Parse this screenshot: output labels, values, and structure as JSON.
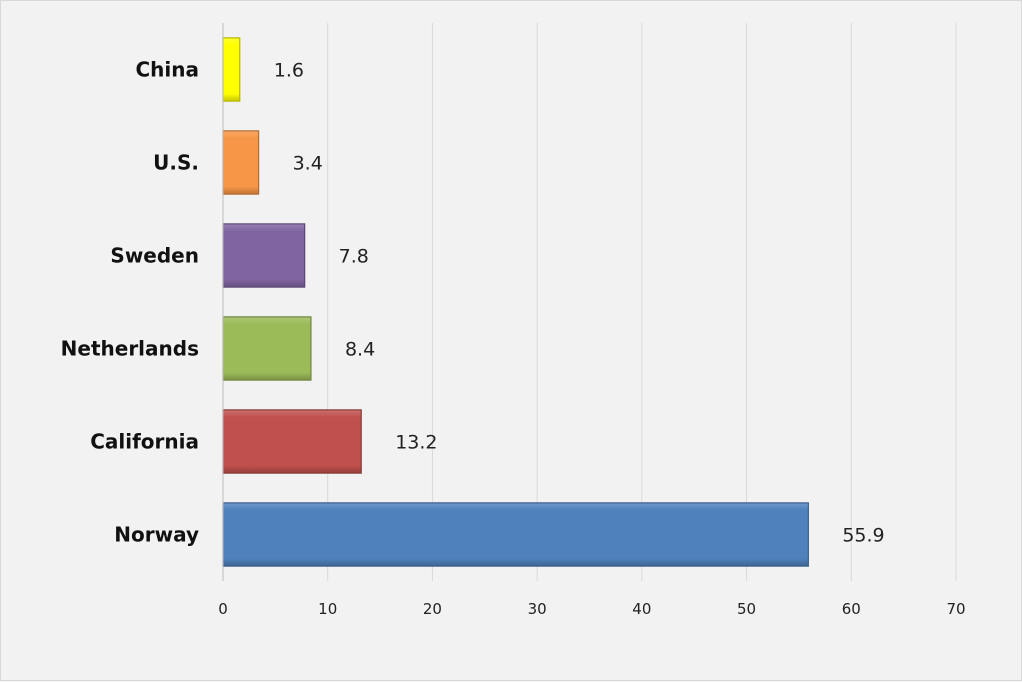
{
  "chart_data": {
    "type": "bar",
    "orientation": "horizontal",
    "title": "",
    "xlabel": "",
    "ylabel": "",
    "categories": [
      "China",
      "U.S.",
      "Sweden",
      "Netherlands",
      "California",
      "Norway"
    ],
    "values": [
      1.6,
      3.4,
      7.8,
      8.4,
      13.2,
      55.9
    ],
    "value_labels": [
      "1.6",
      "3.4",
      "7.8",
      "8.4",
      "13.2",
      "55.9"
    ],
    "colors": [
      "#ffff00",
      "#f79646",
      "#8064a2",
      "#9bbb59",
      "#c0504d",
      "#4f81bd"
    ],
    "xlim": [
      0,
      70
    ],
    "x_ticks": [
      0,
      10,
      20,
      30,
      40,
      50,
      60,
      70
    ],
    "x_tick_labels": [
      "0",
      "10",
      "20",
      "30",
      "40",
      "50",
      "60",
      "70"
    ],
    "grid": "vertical",
    "legend": "none"
  }
}
